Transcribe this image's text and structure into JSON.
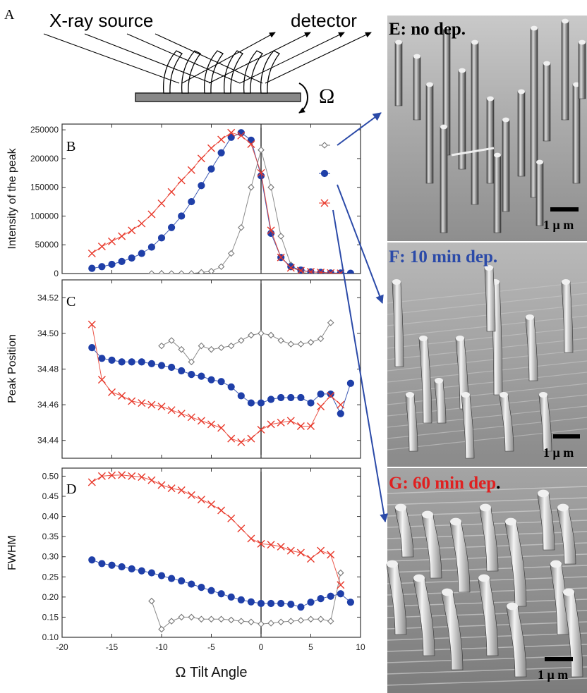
{
  "schematic": {
    "panel_letter": "A",
    "source_label": "X-ray source",
    "detector_label": "detector",
    "rotation_symbol": "Ω"
  },
  "micrographs": [
    {
      "title_prefix": "E: no dep.",
      "title_suffix": "",
      "title_color": "#000000",
      "scale_label": "1 μ m"
    },
    {
      "title_prefix": "F: 10 min dep.",
      "title_suffix": "",
      "title_color": "#2b4aa8",
      "scale_label": "1 μ m"
    },
    {
      "title_prefix": "G: 60 min dep",
      "title_suffix": ".",
      "title_color": "#e02020",
      "scale_label": "1 μ m"
    }
  ],
  "colors": {
    "gray": "#777777",
    "blue": "#1f3fa8",
    "red": "#e8382a",
    "axis": "#333333"
  },
  "chart_data": [
    {
      "type": "line",
      "panel_letter": "B",
      "ylabel": "Intensity of the peak",
      "xlabel": "",
      "xlim": [
        -20,
        10
      ],
      "ylim": [
        0,
        260000
      ],
      "yticks": [
        0,
        50000,
        100000,
        150000,
        200000,
        250000
      ],
      "ytick_labels": [
        "0",
        "50000",
        "100000",
        "150000",
        "200000",
        "250000"
      ],
      "xticks": [
        -20,
        -15,
        -10,
        -5,
        0,
        5,
        10
      ],
      "series": [
        {
          "marker": "diamond",
          "color": "gray",
          "x": [
            -11,
            -10,
            -9,
            -8,
            -7,
            -6,
            -5,
            -4,
            -3,
            -2,
            -1,
            0,
            1,
            2,
            3,
            4,
            5,
            6,
            7,
            8
          ],
          "y": [
            0,
            0,
            0,
            0,
            0,
            2000,
            4000,
            12000,
            35000,
            80000,
            150000,
            215000,
            150000,
            65000,
            15000,
            2000,
            0,
            0,
            0,
            0
          ]
        },
        {
          "marker": "circle",
          "color": "blue",
          "x": [
            -17,
            -16,
            -15,
            -14,
            -13,
            -12,
            -11,
            -10,
            -9,
            -8,
            -7,
            -6,
            -5,
            -4,
            -3,
            -2,
            -1,
            0,
            1,
            2,
            3,
            4,
            5,
            6,
            7,
            8,
            9
          ],
          "y": [
            9000,
            12000,
            16000,
            21000,
            27000,
            35000,
            46000,
            62000,
            80000,
            100000,
            125000,
            153000,
            182000,
            210000,
            237000,
            245000,
            232000,
            170000,
            70000,
            28000,
            12000,
            6000,
            3000,
            2000,
            1000,
            1000,
            500
          ]
        },
        {
          "marker": "cross",
          "color": "red",
          "x": [
            -17,
            -16,
            -15,
            -14,
            -13,
            -12,
            -11,
            -10,
            -9,
            -8,
            -7,
            -6,
            -5,
            -4,
            -3,
            -2,
            -1,
            0,
            1,
            2,
            3,
            4,
            5,
            6,
            7,
            8
          ],
          "y": [
            35000,
            47000,
            56000,
            65000,
            75000,
            87000,
            103000,
            122000,
            142000,
            162000,
            180000,
            200000,
            218000,
            233000,
            245000,
            240000,
            225000,
            175000,
            75000,
            28000,
            10000,
            5000,
            3000,
            2000,
            1000,
            500
          ]
        }
      ],
      "legend_placement": "top-right"
    },
    {
      "type": "line",
      "panel_letter": "C",
      "ylabel": "Peak Position",
      "xlabel": "",
      "xlim": [
        -20,
        10
      ],
      "ylim": [
        34.43,
        34.53
      ],
      "yticks": [
        34.44,
        34.46,
        34.48,
        34.5,
        34.52
      ],
      "ytick_labels": [
        "34.44",
        "34.46",
        "34.48",
        "34.50",
        "34.52"
      ],
      "xticks": [
        -20,
        -15,
        -10,
        -5,
        0,
        5,
        10
      ],
      "series": [
        {
          "marker": "diamond",
          "color": "gray",
          "x": [
            -10,
            -9,
            -8,
            -7,
            -6,
            -5,
            -4,
            -3,
            -2,
            -1,
            0,
            1,
            2,
            3,
            4,
            5,
            6,
            7
          ],
          "y": [
            34.493,
            34.496,
            34.491,
            34.484,
            34.493,
            34.491,
            34.492,
            34.493,
            34.496,
            34.499,
            34.5,
            34.499,
            34.496,
            34.494,
            34.494,
            34.495,
            34.497,
            34.506
          ]
        },
        {
          "marker": "circle",
          "color": "blue",
          "x": [
            -17,
            -16,
            -15,
            -14,
            -13,
            -12,
            -11,
            -10,
            -9,
            -8,
            -7,
            -6,
            -5,
            -4,
            -3,
            -2,
            -1,
            0,
            1,
            2,
            3,
            4,
            5,
            6,
            7,
            8,
            9
          ],
          "y": [
            34.492,
            34.486,
            34.485,
            34.484,
            34.484,
            34.484,
            34.483,
            34.482,
            34.481,
            34.479,
            34.477,
            34.476,
            34.474,
            34.473,
            34.47,
            34.465,
            34.461,
            34.461,
            34.463,
            34.464,
            34.464,
            34.464,
            34.461,
            34.466,
            34.466,
            34.455,
            34.472
          ]
        },
        {
          "marker": "cross",
          "color": "red",
          "x": [
            -17,
            -16,
            -15,
            -14,
            -13,
            -12,
            -11,
            -10,
            -9,
            -8,
            -7,
            -6,
            -5,
            -4,
            -3,
            -2,
            -1,
            0,
            1,
            2,
            3,
            4,
            5,
            6,
            7,
            8
          ],
          "y": [
            34.505,
            34.474,
            34.467,
            34.465,
            34.462,
            34.461,
            34.46,
            34.459,
            34.457,
            34.455,
            34.453,
            34.451,
            34.449,
            34.447,
            34.441,
            34.439,
            34.441,
            34.446,
            34.449,
            34.45,
            34.451,
            34.448,
            34.448,
            34.459,
            34.465,
            34.46
          ]
        }
      ]
    },
    {
      "type": "line",
      "panel_letter": "D",
      "ylabel": "FWHM",
      "xlabel": "Ω Tilt Angle",
      "xlim": [
        -20,
        10
      ],
      "ylim": [
        0.1,
        0.52
      ],
      "yticks": [
        0.1,
        0.15,
        0.2,
        0.25,
        0.3,
        0.35,
        0.4,
        0.45,
        0.5
      ],
      "ytick_labels": [
        "0.10",
        "0.15",
        "0.20",
        "0.25",
        "0.30",
        "0.35",
        "0.40",
        "0.45",
        "0.50"
      ],
      "xticks": [
        -20,
        -15,
        -10,
        -5,
        0,
        5,
        10
      ],
      "xtick_labels": [
        "-20",
        "-15",
        "-10",
        "-5",
        "0",
        "5",
        "10"
      ],
      "series": [
        {
          "marker": "diamond",
          "color": "gray",
          "x": [
            -11,
            -10,
            -9,
            -8,
            -7,
            -6,
            -5,
            -4,
            -3,
            -2,
            -1,
            0,
            1,
            2,
            3,
            4,
            5,
            6,
            7,
            8
          ],
          "y": [
            0.19,
            0.12,
            0.14,
            0.15,
            0.15,
            0.145,
            0.145,
            0.145,
            0.143,
            0.14,
            0.138,
            0.133,
            0.135,
            0.138,
            0.14,
            0.142,
            0.145,
            0.145,
            0.14,
            0.26
          ]
        },
        {
          "marker": "circle",
          "color": "blue",
          "x": [
            -17,
            -16,
            -15,
            -14,
            -13,
            -12,
            -11,
            -10,
            -9,
            -8,
            -7,
            -6,
            -5,
            -4,
            -3,
            -2,
            -1,
            0,
            1,
            2,
            3,
            4,
            5,
            6,
            7,
            8,
            9
          ],
          "y": [
            0.292,
            0.283,
            0.279,
            0.275,
            0.27,
            0.265,
            0.26,
            0.253,
            0.246,
            0.24,
            0.232,
            0.224,
            0.216,
            0.208,
            0.2,
            0.193,
            0.188,
            0.184,
            0.184,
            0.184,
            0.182,
            0.175,
            0.187,
            0.196,
            0.202,
            0.208,
            0.187
          ]
        },
        {
          "marker": "cross",
          "color": "red",
          "x": [
            -17,
            -16,
            -15,
            -14,
            -13,
            -12,
            -11,
            -10,
            -9,
            -8,
            -7,
            -6,
            -5,
            -4,
            -3,
            -2,
            -1,
            0,
            1,
            2,
            3,
            4,
            5,
            6,
            7,
            8
          ],
          "y": [
            0.485,
            0.5,
            0.502,
            0.503,
            0.5,
            0.498,
            0.49,
            0.478,
            0.47,
            0.465,
            0.453,
            0.442,
            0.43,
            0.415,
            0.395,
            0.37,
            0.345,
            0.332,
            0.33,
            0.325,
            0.315,
            0.31,
            0.295,
            0.315,
            0.305,
            0.23
          ]
        }
      ]
    }
  ]
}
